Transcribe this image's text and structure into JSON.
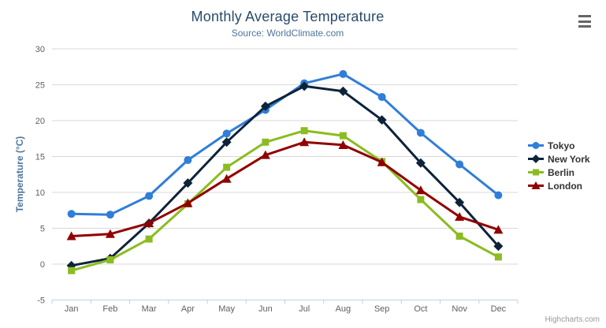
{
  "header": {
    "title": "Monthly Average Temperature",
    "subtitle": "Source: WorldClimate.com"
  },
  "chart_data": {
    "type": "line",
    "title": "Monthly Average Temperature",
    "subtitle": "Source: WorldClimate.com",
    "categories": [
      "Jan",
      "Feb",
      "Mar",
      "Apr",
      "May",
      "Jun",
      "Jul",
      "Aug",
      "Sep",
      "Oct",
      "Nov",
      "Dec"
    ],
    "series": [
      {
        "name": "Tokyo",
        "color": "#2f7ed8",
        "marker": "circle",
        "values": [
          7.0,
          6.9,
          9.5,
          14.5,
          18.2,
          21.5,
          25.2,
          26.5,
          23.3,
          18.3,
          13.9,
          9.6
        ]
      },
      {
        "name": "New York",
        "color": "#0d233a",
        "marker": "diamond",
        "values": [
          -0.2,
          0.8,
          5.7,
          11.3,
          17.0,
          22.0,
          24.8,
          24.1,
          20.1,
          14.1,
          8.6,
          2.5
        ]
      },
      {
        "name": "Berlin",
        "color": "#8bbc21",
        "marker": "square",
        "values": [
          -0.9,
          0.6,
          3.5,
          8.4,
          13.5,
          17.0,
          18.6,
          17.9,
          14.3,
          9.0,
          3.9,
          1.0
        ]
      },
      {
        "name": "London",
        "color": "#910000",
        "marker": "triangle",
        "values": [
          3.9,
          4.2,
          5.7,
          8.5,
          11.9,
          15.2,
          17.0,
          16.6,
          14.2,
          10.3,
          6.6,
          4.8
        ]
      }
    ],
    "xlabel": "",
    "ylabel": "Temperature (°C)",
    "ylim": [
      -5,
      30
    ],
    "y_ticks": [
      -5,
      0,
      5,
      10,
      15,
      20,
      25,
      30
    ],
    "grid": true,
    "legend_position": "right"
  },
  "legend": {
    "items": [
      "Tokyo",
      "New York",
      "Berlin",
      "London"
    ]
  },
  "menu": {
    "icon": "hamburger-menu-icon"
  },
  "credits": {
    "label": "Highcharts.com"
  },
  "colors": {
    "title": "#274b6d",
    "subtitle": "#4d759e",
    "y_axis_title": "#4d759e",
    "axis_labels": "#606060",
    "gridline": "#d8d8d8",
    "axis_line": "#c0d0e0",
    "legend_text": "#333333",
    "credits": "#999999",
    "menu_icon": "#666666"
  }
}
